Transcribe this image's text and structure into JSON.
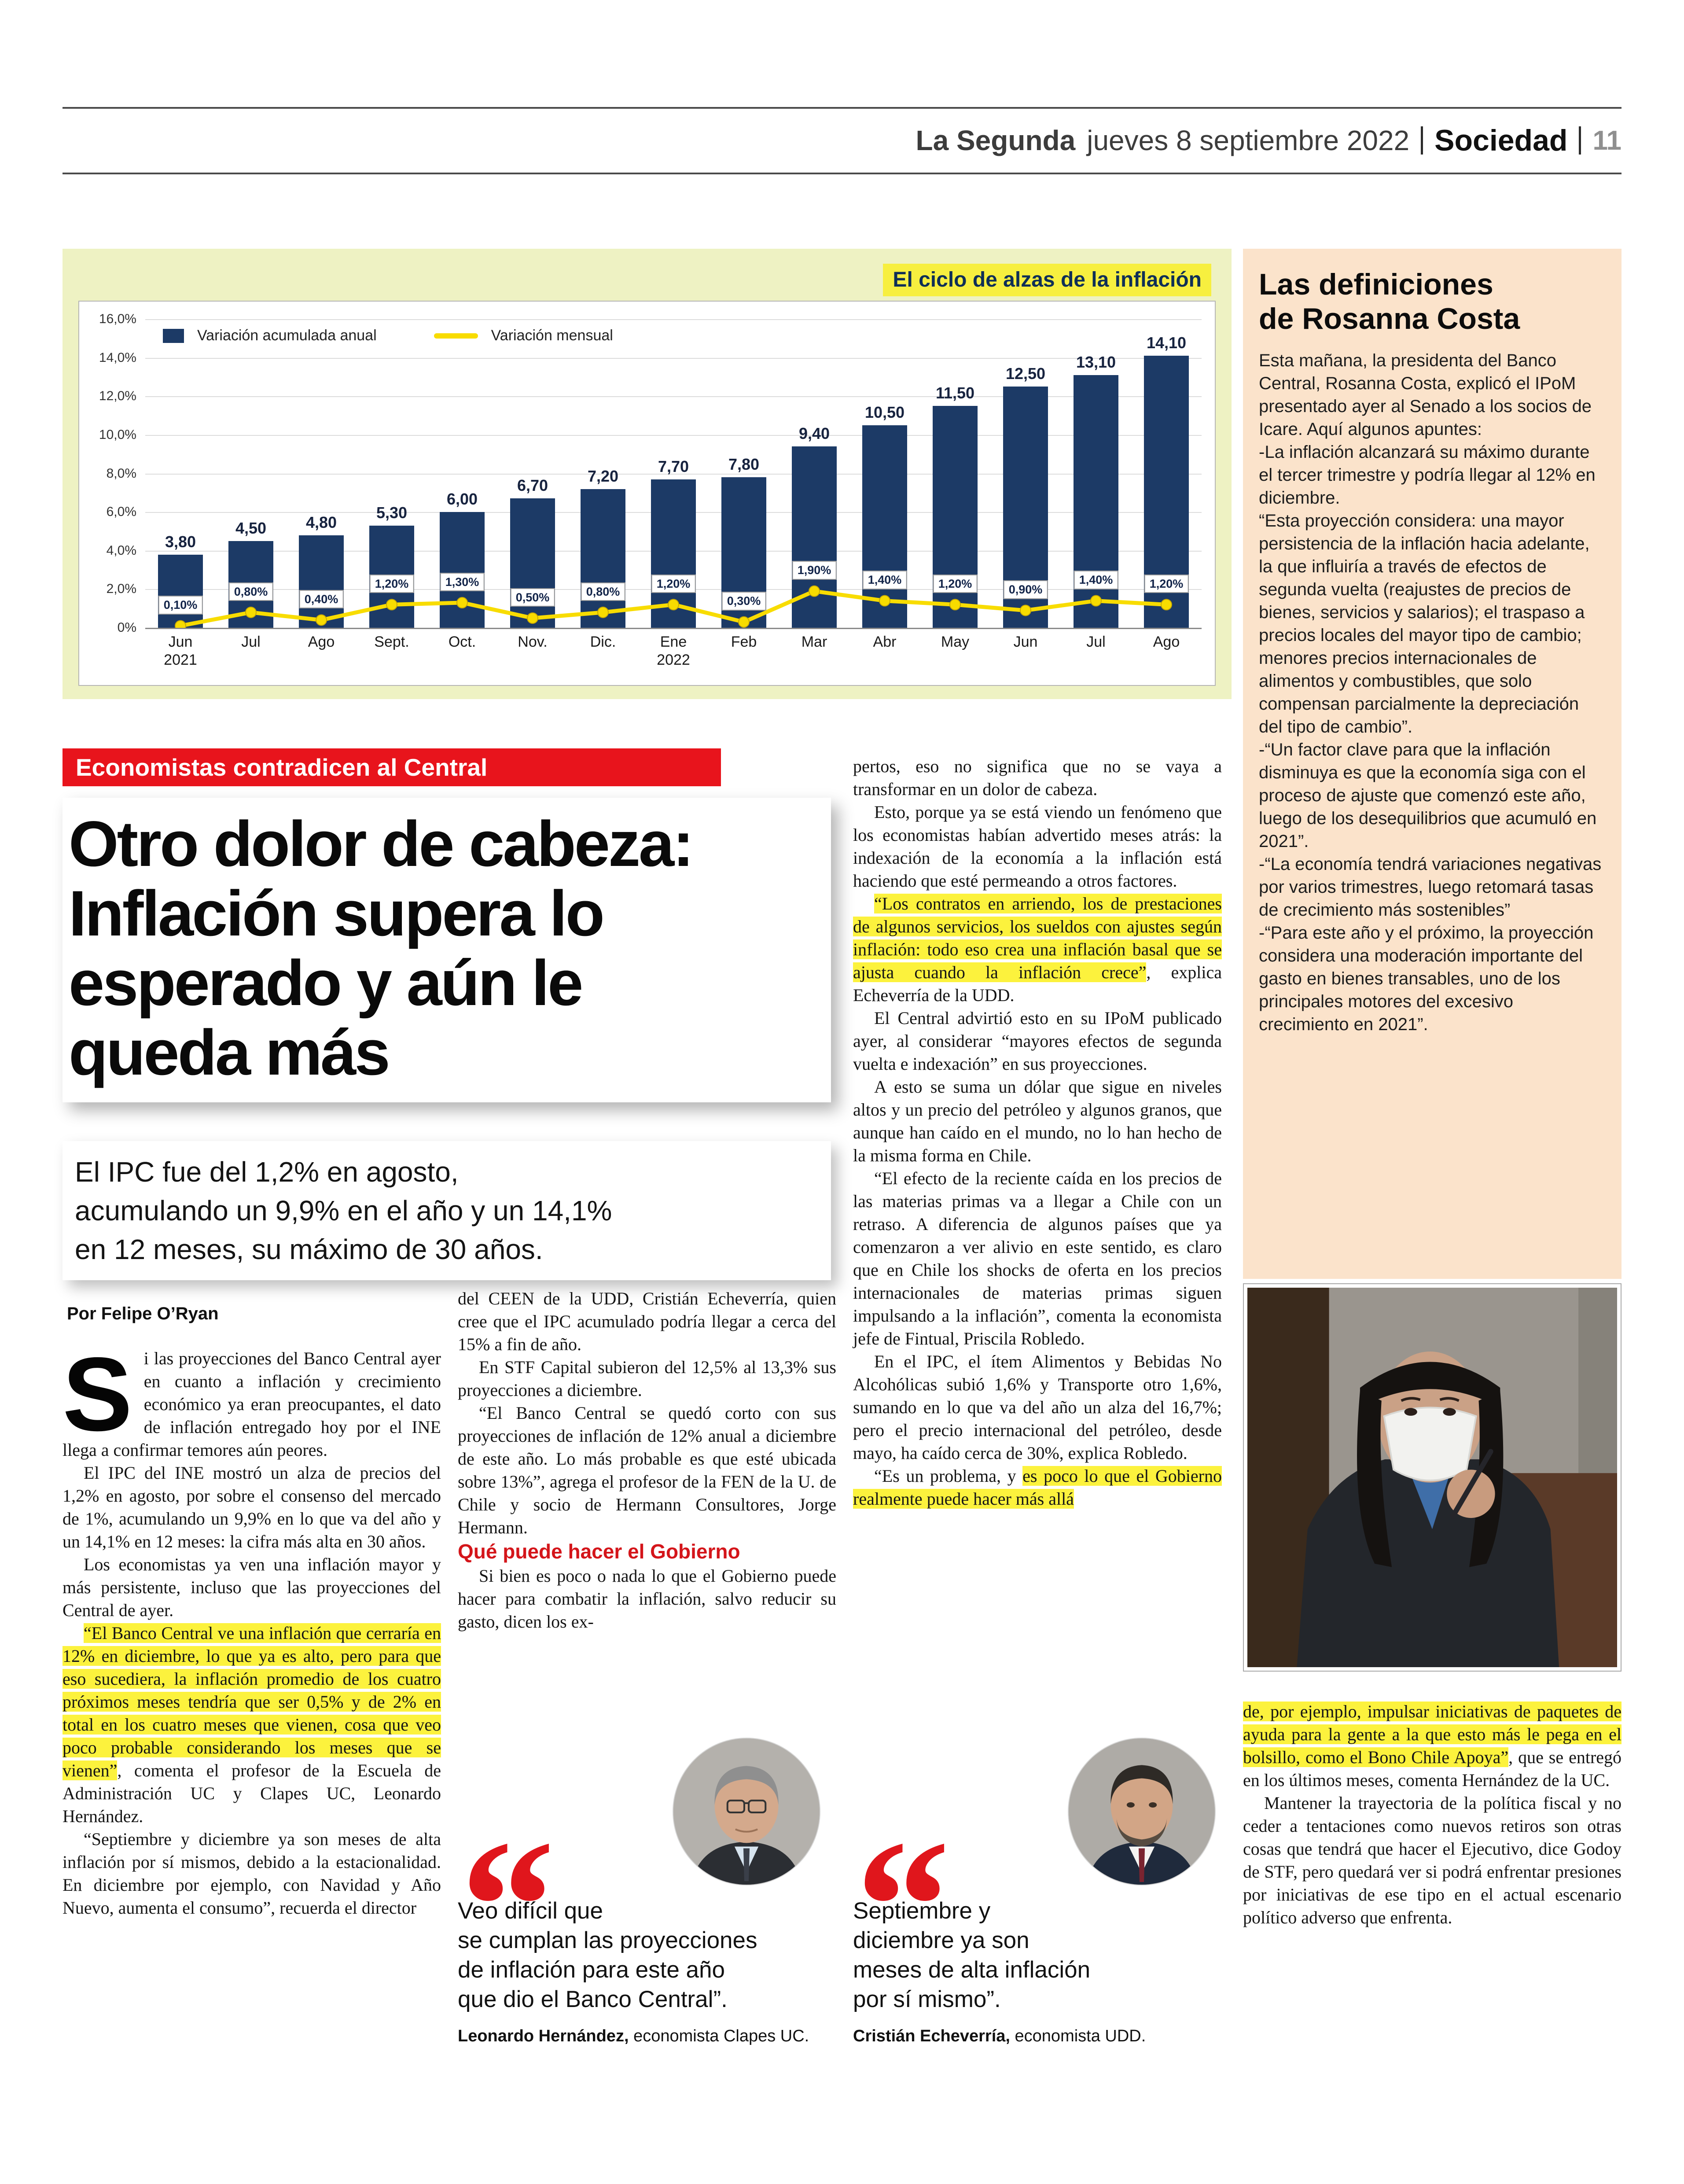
{
  "masthead": {
    "paper": "La Segunda",
    "date": "jueves 8 septiembre 2022",
    "section": "Sociedad",
    "page_number": "11"
  },
  "chart": {
    "type": "bar",
    "title": "El ciclo de alzas de la inflación",
    "categories": [
      "Jun\n2021",
      "Jul",
      "Ago",
      "Sept.",
      "Oct.",
      "Nov.",
      "Dic.",
      "Ene\n2022",
      "Feb",
      "Mar",
      "Abr",
      "May",
      "Jun",
      "Jul",
      "Ago"
    ],
    "series": [
      {
        "name": "Variación acumulada anual",
        "type": "bar",
        "color": "#1c3a66",
        "values": [
          3.8,
          4.5,
          4.8,
          5.3,
          6.0,
          6.7,
          7.2,
          7.7,
          7.8,
          9.4,
          10.5,
          11.5,
          12.5,
          13.1,
          14.1
        ],
        "labels": [
          "3,80",
          "4,50",
          "4,80",
          "5,30",
          "6,00",
          "6,70",
          "7,20",
          "7,70",
          "7,80",
          "9,40",
          "10,50",
          "11,50",
          "12,50",
          "13,10",
          "14,10"
        ]
      },
      {
        "name": "Variación mensual",
        "type": "line",
        "color": "#f8dc00",
        "values": [
          0.1,
          0.8,
          0.4,
          1.2,
          1.3,
          0.5,
          0.8,
          1.2,
          0.3,
          1.9,
          1.4,
          1.2,
          0.9,
          1.4,
          1.2
        ],
        "labels": [
          "0,10%",
          "0,80%",
          "0,40%",
          "1,20%",
          "1,30%",
          "0,50%",
          "0,80%",
          "1,20%",
          "0,30%",
          "1,90%",
          "1,40%",
          "1,20%",
          "0,90%",
          "1,40%",
          "1,20%"
        ]
      }
    ],
    "ylim": [
      0,
      16
    ],
    "yticks": [
      "16,0%",
      "14,0%",
      "12,0%",
      "10,0%",
      "8,0%",
      "6,0%",
      "4,0%",
      "2,0%",
      "0%"
    ],
    "grid": true,
    "legend_position": "inside-top-left"
  },
  "kicker": "Economistas contradicen al Central",
  "headline": "Otro dolor de cabeza:\nInflación supera lo\nesperado y aún le\nqueda más",
  "subhead": "El IPC fue del 1,2% en agosto,\nacumulando un 9,9% en el año y un 14,1%\nen 12 meses, su máximo de 30 años.",
  "byline": "Por Felipe O’Ryan",
  "article": {
    "col1": {
      "dropcap": "S",
      "p1": "i las proyecciones del Banco Central ayer en cuanto a inflación y crecimiento económico ya eran preocupantes, el dato de inflación entregado hoy por el INE llega a confirmar temores aún peores.",
      "p2": "El IPC del INE mostró un alza de precios del 1,2% en agosto, por sobre el consenso del mercado de 1%, acumulando un 9,9% en lo que va del año y un 14,1% en 12 meses: la cifra más alta en 30 años.",
      "p3": "Los economistas ya ven una inflación mayor y más persistente, incluso que las proyecciones del Central de ayer.",
      "p4": [
        {
          "t": "“El Banco Central ve una inflación que cerraría en 12% en diciembre, lo que ya es alto, pero para que eso sucediera, la inflación promedio de los cuatro próximos meses tendría que ser 0,5% y de 2% en total en los cuatro meses que vienen, cosa que veo poco probable considerando los meses que se vienen”",
          "h": true
        },
        {
          "t": ", comenta el profesor de la Escuela de Administración UC y Clapes UC, Leonardo Hernández.",
          "h": false
        }
      ],
      "p5": "“Septiembre y diciembre ya son meses de alta inflación por sí mismos, debido a la estacionalidad. En diciembre por ejemplo, con Navidad y Año Nuevo, aumenta el consumo”, recuerda el director"
    },
    "col2": {
      "p1": "del CEEN de la UDD, Cristián Echeverría, quien cree que el IPC acumulado podría llegar a cerca del 15% a fin de año.",
      "p2": "En STF Capital subieron del 12,5% al 13,3% sus proyecciones a diciembre.",
      "p3": "“El Banco Central se quedó corto con sus proyecciones de inflación de 12% anual a diciembre de este año. Lo más probable es que esté ubicada sobre 13%”, agrega el profesor de la FEN de la U. de Chile y socio de Hermann Consultores, Jorge Hermann.",
      "crosshead": "Qué puede hacer el Gobierno",
      "p4": "Si bien es poco o nada lo que el Gobierno puede hacer para combatir la inflación, salvo reducir su gasto, dicen los ex-"
    },
    "col3": {
      "p1": "pertos, eso no significa que no se vaya a transformar en un dolor de cabeza.",
      "p2": "Esto, porque ya se está viendo un fenómeno que los economistas habían advertido meses atrás: la indexación de la economía a la inflación está haciendo que esté permeando a otros factores.",
      "p3": [
        {
          "t": "“Los contratos en arriendo, los de prestaciones de algunos servicios, los sueldos con ajustes según inflación: todo eso crea una inflación basal que se ajusta cuando la inflación crece”",
          "h": true
        },
        {
          "t": ", explica Echeverría de la UDD.",
          "h": false
        }
      ],
      "p4": "El Central advirtió esto en su IPoM publicado ayer, al considerar “mayores efectos de segunda vuelta e indexación” en sus proyecciones.",
      "p5": "A esto se suma un dólar que sigue en niveles altos y un precio del petróleo y algunos granos, que aunque han caído en el mundo, no lo han hecho de la misma forma en Chile.",
      "p6": "“El efecto de la reciente caída en los precios de las materias primas va a llegar a Chile con un retraso. A diferencia de algunos países que ya comenzaron a ver alivio en este sentido, es claro que en Chile los shocks de oferta en los precios internacionales de materias primas siguen impulsando a la inflación”, comenta la economista jefe de Fintual, Priscila Robledo.",
      "p7": "En el IPC, el ítem Alimentos y Bebidas No Alcohólicas subió 1,6% y Transporte otro 1,6%, sumando en lo que va del año un alza del 16,7%; pero el precio internacional del petróleo, desde mayo, ha caído cerca de 30%, explica Robledo.",
      "p8": [
        {
          "t": "“Es un problema, y ",
          "h": false
        },
        {
          "t": "es poco lo que el Gobierno realmente puede hacer más allá",
          "h": true
        }
      ]
    },
    "continuation": {
      "p1": [
        {
          "t": "de, por ejemplo, impulsar iniciativas de paquetes de ayuda para la gente a la que esto más le pega en el bolsillo, como el Bono Chile Apoya”",
          "h": true
        },
        {
          "t": ", que se entregó en los últimos meses, comenta Hernández de la UC.",
          "h": false
        }
      ],
      "p2": "Mantener la trayectoria de la política fiscal y no ceder a tentaciones como nuevos retiros son otras cosas que tendrá que hacer el Ejecutivo, dice Godoy de STF, pero quedará ver si podrá enfrentar presiones por iniciativas de ese tipo en el actual escenario político adverso que enfrenta."
    }
  },
  "quotes": [
    {
      "mark": "“",
      "text": "Veo difícil que\nse cumplan las proyecciones\nde inflación para este año\nque dio el Banco Central”.",
      "name": "Leonardo Hernández,",
      "role": "economista Clapes UC."
    },
    {
      "mark": "“",
      "text": "Septiembre y\ndiciembre ya son\nmeses de alta inflación\npor sí mismo”.",
      "name": "Cristián Echeverría,",
      "role": "economista UDD."
    }
  ],
  "sidebar": {
    "title": "Las definiciones\nde Rosanna Costa",
    "paragraphs": {
      "p1": "Esta mañana, la presidenta del Banco Central, Rosanna Costa, explicó el IPoM presentado ayer al Senado a los socios de Icare. Aquí algunos apuntes:",
      "p2": "-La inflación alcanzará su máximo durante el tercer trimestre y podría llegar al 12% en diciembre.",
      "p3": "“Esta proyección considera: una mayor persistencia de la inflación hacia adelante, la que influiría a través de efectos de segunda vuelta (reajustes de precios de bienes, servicios y salarios); el traspaso a precios locales del mayor tipo de cambio; menores precios internacionales de alimentos y combustibles, que solo compensan parcialmente la depreciación del tipo de cambio”.",
      "p4": "-“Un factor clave para que la inflación disminuya es que la economía siga con el proceso de ajuste que comenzó este año, luego de los desequilibrios que acumuló en 2021”.",
      "p5": "-“La economía tendrá variaciones negativas por varios trimestres, luego retomará tasas de crecimiento más sostenibles”",
      "p6": "-“Para este año y el próximo, la proyección considera una moderación importante del gasto en bienes transables, uno de los principales motores del excesivo crecimiento en 2021”."
    }
  },
  "colors": {
    "accent_red": "#e8141c",
    "bar_navy": "#1c3a66",
    "line_yellow": "#f8dc00",
    "highlight_yellow": "#fcf23d",
    "chart_panel_bg": "#eef2c3",
    "sidebar_bg": "#fbe3cb"
  }
}
